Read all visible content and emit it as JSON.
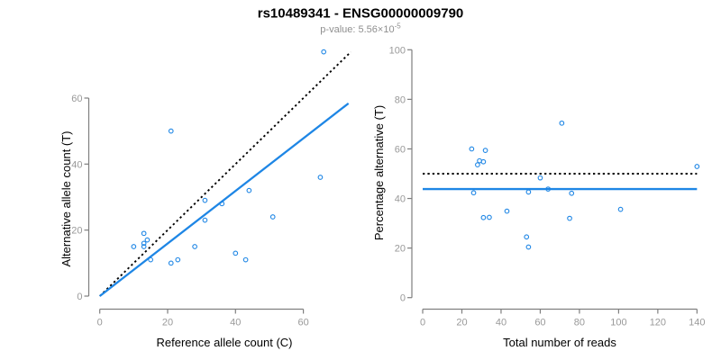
{
  "title": "rs10489341 - ENSG00000009790",
  "subtitle": {
    "prefix": "p-value: 5.56×10",
    "exponent": "-5"
  },
  "colors": {
    "accent_blue": "#1E86E5",
    "line_black": "#000000",
    "axis_gray": "#7F7F7F",
    "tick_label_gray": "#999999",
    "subtitle_gray": "#8F8F8F",
    "title_black": "#000000",
    "background": "#FFFFFF"
  },
  "chart_data": [
    {
      "type": "scatter",
      "panel": "left",
      "xlabel": "Reference allele count (C)",
      "ylabel": "Alternative allele count (T)",
      "xticks": [
        0,
        20,
        40,
        60
      ],
      "yticks": [
        0,
        20,
        40,
        60
      ],
      "xlim": [
        0,
        74
      ],
      "ylim": [
        0,
        76
      ],
      "grid": false,
      "legend": "none",
      "marker": "open-circle",
      "points": [
        [
          21,
          50
        ],
        [
          65,
          36
        ],
        [
          44,
          32
        ],
        [
          31,
          29
        ],
        [
          36,
          28
        ],
        [
          51,
          24
        ],
        [
          31,
          23
        ],
        [
          13,
          19
        ],
        [
          14,
          17
        ],
        [
          13,
          16
        ],
        [
          10,
          15
        ],
        [
          13,
          15
        ],
        [
          28,
          15
        ],
        [
          40,
          13
        ],
        [
          15,
          11
        ],
        [
          43,
          11
        ],
        [
          23,
          11
        ],
        [
          21,
          10
        ],
        [
          66,
          74
        ]
      ],
      "lines": [
        {
          "name": "identity-line",
          "style": "dotted",
          "color": "#000000",
          "from": [
            0,
            0
          ],
          "to": [
            74,
            74
          ]
        },
        {
          "name": "fit-line",
          "style": "solid",
          "color": "#1E86E5",
          "from": [
            0,
            0
          ],
          "to": [
            73.3,
            58.4
          ]
        }
      ]
    },
    {
      "type": "scatter",
      "panel": "right",
      "xlabel": "Total number of reads",
      "ylabel": "Percentage alternative (T)",
      "xticks": [
        0,
        20,
        40,
        60,
        80,
        100,
        120,
        140
      ],
      "yticks": [
        0,
        20,
        40,
        60,
        80,
        100
      ],
      "xlim": [
        0,
        142
      ],
      "ylim": [
        0,
        100
      ],
      "grid": false,
      "legend": "none",
      "marker": "open-circle",
      "points": [
        [
          71,
          70.4
        ],
        [
          101,
          35.6
        ],
        [
          76,
          42.1
        ],
        [
          60,
          48.3
        ],
        [
          64,
          43.8
        ],
        [
          75,
          32.0
        ],
        [
          54,
          42.6
        ],
        [
          32,
          59.4
        ],
        [
          31,
          54.8
        ],
        [
          29,
          55.2
        ],
        [
          25,
          60.0
        ],
        [
          28,
          53.6
        ],
        [
          43,
          34.9
        ],
        [
          53,
          24.5
        ],
        [
          26,
          42.3
        ],
        [
          54,
          20.4
        ],
        [
          34,
          32.4
        ],
        [
          31,
          32.3
        ],
        [
          140,
          52.9
        ]
      ],
      "lines": [
        {
          "name": "null-line",
          "style": "dotted",
          "color": "#000000",
          "from": [
            0,
            50
          ],
          "to": [
            140,
            50
          ]
        },
        {
          "name": "fit-line",
          "style": "solid",
          "color": "#1E86E5",
          "from": [
            0,
            43.8
          ],
          "to": [
            140,
            43.8
          ]
        }
      ]
    }
  ]
}
